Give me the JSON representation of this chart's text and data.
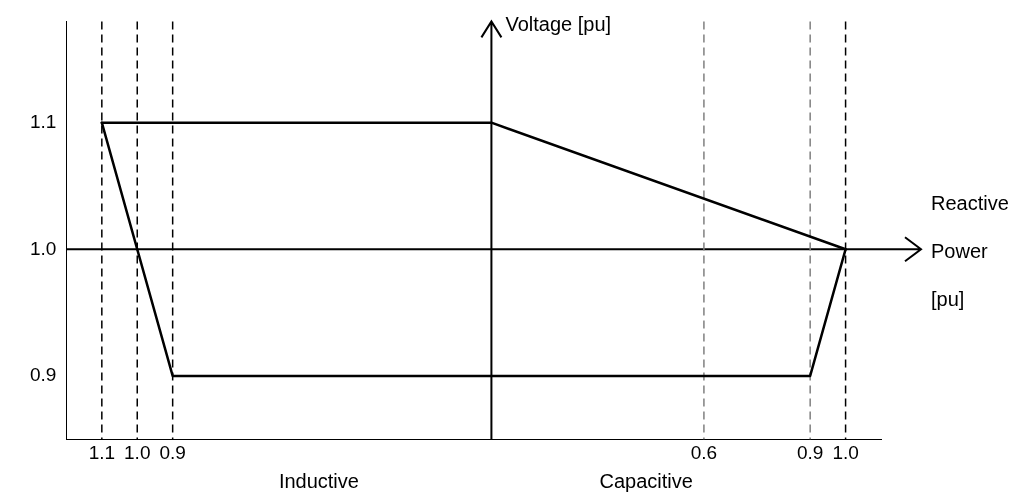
{
  "chart_data": {
    "type": "line",
    "xlabel": "Reactive Power [pu]",
    "ylabel": "Voltage [pu]",
    "series": [
      {
        "color": "#000000",
        "x": [
          -1.1,
          0,
          1.0
        ],
        "values": [
          1.1,
          1.1,
          1.0
        ]
      },
      {
        "color": "#000000",
        "x": [
          -1.1,
          -0.9,
          0.9,
          1.0
        ],
        "values": [
          1.1,
          0.9,
          0.9,
          1.0
        ]
      }
    ],
    "xlim": [
      -1.2,
      1.1
    ],
    "ylim": [
      0.85,
      1.18
    ],
    "xticks": [
      {
        "value": -1.1,
        "label": "1.1"
      },
      {
        "value": -1.0,
        "label": "1.0"
      },
      {
        "value": -0.9,
        "label": "0.9"
      },
      {
        "value": 0.6,
        "label": "0.6"
      },
      {
        "value": 0.9,
        "label": "0.9"
      },
      {
        "value": 1.0,
        "label": "1.0"
      }
    ],
    "yticks": [
      0.9,
      {
        "value": 1.0,
        "label": "1.0"
      },
      1.1
    ],
    "ref_lines": [
      {
        "axis": "y",
        "value": 1.0,
        "color": "#000000",
        "line_style": "solid"
      },
      {
        "axis": "x",
        "value": 0,
        "color": "#000000",
        "line_style": "solid"
      },
      {
        "axis": "x",
        "value": -1.1,
        "color": "#000000",
        "line_style": "dashed"
      },
      {
        "axis": "x",
        "value": -1.0,
        "color": "#000000",
        "line_style": "dashed"
      },
      {
        "axis": "x",
        "value": -0.9,
        "color": "#000000",
        "line_style": "dashed"
      },
      {
        "axis": "x",
        "value": 0.6,
        "color": "#808080",
        "line_style": "dashed"
      },
      {
        "axis": "x",
        "value": 0.9,
        "color": "#808080",
        "line_style": "dashed"
      },
      {
        "axis": "x",
        "value": 1.0,
        "color": "#000000",
        "line_style": "dashed"
      }
    ],
    "annotations": [
      "Inductive",
      "Capacitive"
    ],
    "grid": false,
    "legend": false,
    "marker": "none",
    "line_style": "solid"
  }
}
